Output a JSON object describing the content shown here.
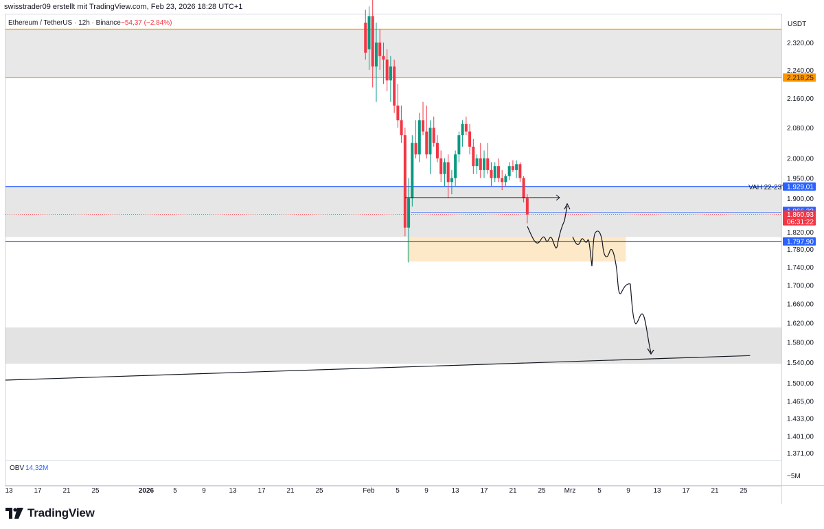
{
  "header": {
    "text": "swisstrader09 erstellt mit TradingView.com, Feb 23, 2026 18:28 UTC+1"
  },
  "brand": {
    "name": "TradingView"
  },
  "chart_data": {
    "type": "candlestick",
    "legend": {
      "symbol": "Ethereum / TetherUS · 12h · Binance",
      "change": "−54,37 (−2,84%)",
      "change_color": "#f23645"
    },
    "currency": "USDT",
    "y_scale": "log",
    "y_ticks": [
      {
        "value": 2320,
        "label": "2.320,00"
      },
      {
        "value": 2240,
        "label": "2.240,00"
      },
      {
        "value": 2160,
        "label": "2.160,00"
      },
      {
        "value": 2080,
        "label": "2.080,00"
      },
      {
        "value": 2000,
        "label": "2.000,00"
      },
      {
        "value": 1950,
        "label": "1.950,00"
      },
      {
        "value": 1900,
        "label": "1.900,00"
      },
      {
        "value": 1820,
        "label": "1.820,00"
      },
      {
        "value": 1780,
        "label": "1.780,00"
      },
      {
        "value": 1740,
        "label": "1.740,00"
      },
      {
        "value": 1700,
        "label": "1.700,00"
      },
      {
        "value": 1660,
        "label": "1.660,00"
      },
      {
        "value": 1620,
        "label": "1.620,00"
      },
      {
        "value": 1580,
        "label": "1.580,00"
      },
      {
        "value": 1540,
        "label": "1.540,00"
      },
      {
        "value": 1500,
        "label": "1.500,00"
      },
      {
        "value": 1465,
        "label": "1.465,00"
      },
      {
        "value": 1433,
        "label": "1.433,00"
      },
      {
        "value": 1401,
        "label": "1.401,00"
      },
      {
        "value": 1371,
        "label": "1.371,00"
      }
    ],
    "price_badges": [
      {
        "value": 2218.25,
        "label": "2.218,25",
        "color": "#ff9800",
        "text_color": "#131722"
      },
      {
        "value": 1929.01,
        "label": "1.929,01",
        "color": "#2962ff",
        "text_color": "#ffffff"
      },
      {
        "value": 1866.33,
        "label": "1.866,33",
        "color": "#2962ff",
        "text_color": "#ffffff"
      },
      {
        "value": 1860.93,
        "label": "1.860,93",
        "sublabel": "06:31:22",
        "color": "#f23645",
        "text_color": "#ffffff"
      },
      {
        "value": 1797.9,
        "label": "1.797,90",
        "color": "#2962ff",
        "text_color": "#ffffff"
      }
    ],
    "horizontal_lines": [
      {
        "value": 2360,
        "color": "#ff9800",
        "label": ""
      },
      {
        "value": 2218.25,
        "color": "#ff9800",
        "label": ""
      },
      {
        "value": 1929.01,
        "color": "#2962ff",
        "label": "VAH 22-23'"
      },
      {
        "value": 1797.9,
        "color": "#2962ff",
        "label": ""
      },
      {
        "value": 1866.33,
        "color": "#2962ff",
        "label": "",
        "thin": true
      },
      {
        "value": 1860.93,
        "color": "#f23645",
        "label": "",
        "dotted": true
      }
    ],
    "zones": [
      {
        "from": 2360,
        "to": 2218.25,
        "color": "#e8e8e8"
      },
      {
        "from": 1929.01,
        "to": 1808,
        "color": "#e6e6e6"
      },
      {
        "from": 1610,
        "to": 1537,
        "color": "#e3e3e3"
      }
    ],
    "highlight_box": {
      "x_from": "2026-02-06",
      "x_to": "2026-03-09",
      "from": 1808,
      "to": 1752,
      "color": "#fde9c8"
    },
    "x_ticks": [
      {
        "label": "13"
      },
      {
        "label": "17"
      },
      {
        "label": "21"
      },
      {
        "label": "25"
      },
      {
        "label": "2026",
        "bold": true
      },
      {
        "label": "5"
      },
      {
        "label": "9"
      },
      {
        "label": "13"
      },
      {
        "label": "17"
      },
      {
        "label": "21"
      },
      {
        "label": "25"
      },
      {
        "label": "Feb"
      },
      {
        "label": "5"
      },
      {
        "label": "9"
      },
      {
        "label": "13"
      },
      {
        "label": "17"
      },
      {
        "label": "21"
      },
      {
        "label": "25"
      },
      {
        "label": "Mrz"
      },
      {
        "label": "5"
      },
      {
        "label": "9"
      },
      {
        "label": "13"
      },
      {
        "label": "17"
      },
      {
        "label": "21"
      },
      {
        "label": "25"
      }
    ],
    "x_start": "2025-12-13",
    "trendline": {
      "from": {
        "x": "2025-12-13",
        "y": 1505
      },
      "to": {
        "x": "2026-03-26",
        "y": 1553
      }
    },
    "candles": [
      {
        "o": 2380,
        "h": 2420,
        "l": 2270,
        "c": 2290
      },
      {
        "o": 2300,
        "h": 2430,
        "l": 2240,
        "c": 2400
      },
      {
        "o": 2400,
        "h": 2460,
        "l": 2190,
        "c": 2250
      },
      {
        "o": 2250,
        "h": 2380,
        "l": 2150,
        "c": 2320
      },
      {
        "o": 2320,
        "h": 2360,
        "l": 2240,
        "c": 2280
      },
      {
        "o": 2280,
        "h": 2320,
        "l": 2200,
        "c": 2270
      },
      {
        "o": 2270,
        "h": 2300,
        "l": 2180,
        "c": 2210
      },
      {
        "o": 2210,
        "h": 2280,
        "l": 2150,
        "c": 2250
      },
      {
        "o": 2250,
        "h": 2270,
        "l": 2120,
        "c": 2140
      },
      {
        "o": 2140,
        "h": 2200,
        "l": 2080,
        "c": 2100
      },
      {
        "o": 2100,
        "h": 2140,
        "l": 2040,
        "c": 2060
      },
      {
        "o": 2060,
        "h": 2080,
        "l": 1810,
        "c": 1830
      },
      {
        "o": 1830,
        "h": 1950,
        "l": 1750,
        "c": 1900
      },
      {
        "o": 1900,
        "h": 2060,
        "l": 1880,
        "c": 2040
      },
      {
        "o": 2040,
        "h": 2100,
        "l": 2000,
        "c": 2010
      },
      {
        "o": 2010,
        "h": 2120,
        "l": 1990,
        "c": 2100
      },
      {
        "o": 2100,
        "h": 2150,
        "l": 2060,
        "c": 2070
      },
      {
        "o": 2070,
        "h": 2140,
        "l": 2000,
        "c": 2010
      },
      {
        "o": 2010,
        "h": 2100,
        "l": 1960,
        "c": 2080
      },
      {
        "o": 2080,
        "h": 2110,
        "l": 2030,
        "c": 2040
      },
      {
        "o": 2040,
        "h": 2060,
        "l": 1990,
        "c": 2000
      },
      {
        "o": 2000,
        "h": 2020,
        "l": 1940,
        "c": 1960
      },
      {
        "o": 1960,
        "h": 2000,
        "l": 1930,
        "c": 1990
      },
      {
        "o": 1990,
        "h": 2010,
        "l": 1900,
        "c": 1940
      },
      {
        "o": 1940,
        "h": 1970,
        "l": 1910,
        "c": 1950
      },
      {
        "o": 1950,
        "h": 2020,
        "l": 1930,
        "c": 2010
      },
      {
        "o": 2010,
        "h": 2070,
        "l": 1990,
        "c": 2060
      },
      {
        "o": 2060,
        "h": 2100,
        "l": 2030,
        "c": 2090
      },
      {
        "o": 2090,
        "h": 2110,
        "l": 2060,
        "c": 2070
      },
      {
        "o": 2070,
        "h": 2090,
        "l": 2010,
        "c": 2030
      },
      {
        "o": 2030,
        "h": 2050,
        "l": 1960,
        "c": 1980
      },
      {
        "o": 1980,
        "h": 2010,
        "l": 1960,
        "c": 2000
      },
      {
        "o": 2000,
        "h": 2040,
        "l": 1950,
        "c": 1970
      },
      {
        "o": 1970,
        "h": 2020,
        "l": 1950,
        "c": 2000
      },
      {
        "o": 2000,
        "h": 2040,
        "l": 1960,
        "c": 1970
      },
      {
        "o": 1970,
        "h": 1990,
        "l": 1930,
        "c": 1950
      },
      {
        "o": 1950,
        "h": 1990,
        "l": 1940,
        "c": 1980
      },
      {
        "o": 1980,
        "h": 2000,
        "l": 1940,
        "c": 1950
      },
      {
        "o": 1950,
        "h": 1970,
        "l": 1920,
        "c": 1940
      },
      {
        "o": 1940,
        "h": 1960,
        "l": 1930,
        "c": 1955
      },
      {
        "o": 1955,
        "h": 1990,
        "l": 1945,
        "c": 1980
      },
      {
        "o": 1980,
        "h": 1995,
        "l": 1965,
        "c": 1970
      },
      {
        "o": 1970,
        "h": 1995,
        "l": 1950,
        "c": 1985
      },
      {
        "o": 1985,
        "h": 1990,
        "l": 1940,
        "c": 1950
      },
      {
        "o": 1950,
        "h": 1955,
        "l": 1890,
        "c": 1900
      },
      {
        "o": 1900,
        "h": 1910,
        "l": 1840,
        "c": 1860.93
      }
    ],
    "obv": {
      "label": "OBV",
      "value": "14,32M",
      "tick": "−5M"
    }
  }
}
